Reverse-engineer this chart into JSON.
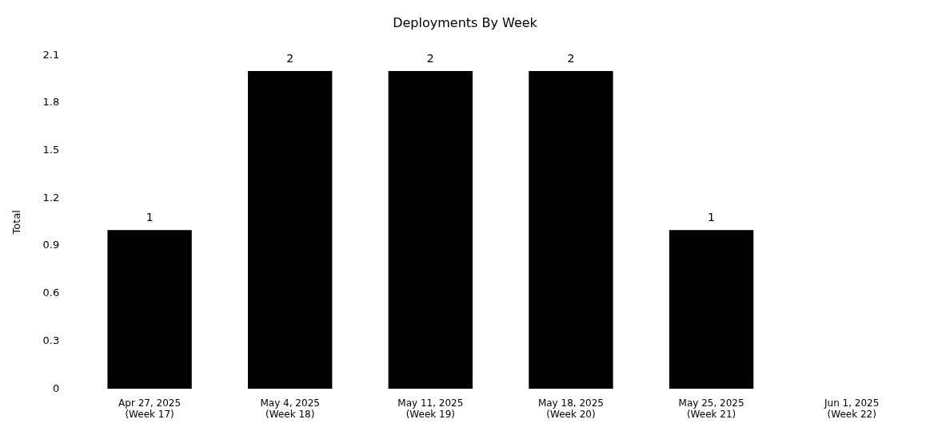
{
  "chart_data": {
    "type": "bar",
    "title": "Deployments By Week",
    "ylabel": "Total",
    "categories": [
      "Apr 27, 2025\n(Week 17)",
      "May 4, 2025\n(Week 18)",
      "May 11, 2025\n(Week 19)",
      "May 18, 2025\n(Week 20)",
      "May 25, 2025\n(Week 21)",
      "Jun 1, 2025\n(Week 22)"
    ],
    "values": [
      1,
      2,
      2,
      2,
      1,
      null
    ],
    "color": "#000000",
    "ylim": [
      0,
      2.1
    ],
    "yticks": [
      0,
      0.3,
      0.6,
      0.9,
      1.2,
      1.5,
      1.8,
      2.1
    ],
    "data_labels": true,
    "grid": false,
    "legend": false
  }
}
